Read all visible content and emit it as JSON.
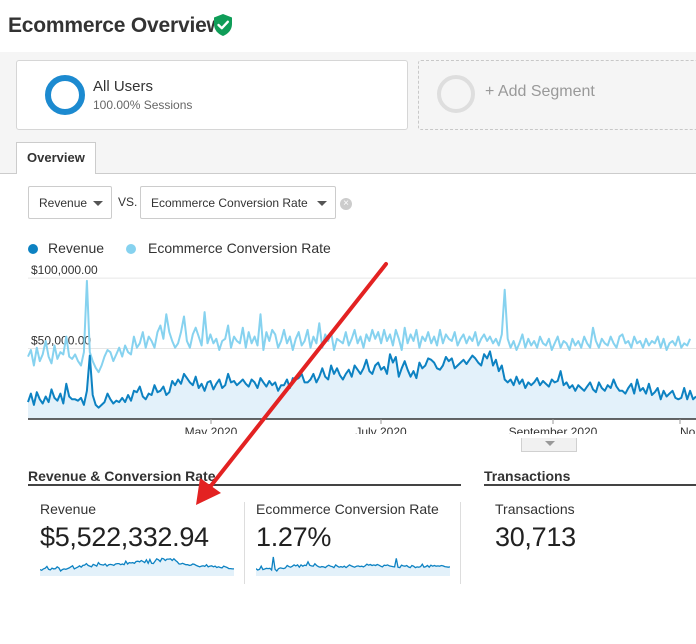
{
  "header": {
    "title": "Ecommerce Overview",
    "verified_icon": "shield-check-icon",
    "verified_color": "#0f9d58"
  },
  "segments": {
    "active": {
      "name": "All Users",
      "subtitle": "100.00% Sessions",
      "color": "#1c8ad0"
    },
    "add_label": "+ Add Segment"
  },
  "tabs": [
    {
      "label": "Overview",
      "selected": true
    }
  ],
  "controls": {
    "metric_primary": "Revenue",
    "vs_label": "VS.",
    "metric_secondary": "Ecommerce Conversion Rate",
    "clear_icon": "clear-x-icon"
  },
  "chart_data": {
    "type": "line",
    "x_tick_labels": [
      "May 2020",
      "July 2020",
      "September 2020",
      "No"
    ],
    "y_tick_labels": [
      "$100,000.00",
      "$50,000.00"
    ],
    "yaxis": {
      "ticks": [
        100000,
        50000
      ],
      "range": [
        0,
        110000
      ]
    },
    "grid": "horizontal",
    "legend_position": "top-left",
    "series": [
      {
        "name": "Revenue",
        "color": "#0d82c2",
        "fill": "#e3f1fa",
        "values": [
          12000,
          18000,
          10000,
          19000,
          14000,
          11000,
          16000,
          12000,
          21000,
          15000,
          13000,
          18000,
          11000,
          25000,
          16000,
          14000,
          14000,
          13000,
          15000,
          10000,
          20000,
          45000,
          17000,
          10000,
          8000,
          10000,
          12000,
          18000,
          14000,
          11000,
          13000,
          12000,
          15000,
          12000,
          17000,
          13000,
          20000,
          19000,
          23000,
          16000,
          14000,
          18000,
          17000,
          24000,
          19000,
          20000,
          23000,
          17000,
          19000,
          27000,
          24000,
          28000,
          25000,
          32000,
          29000,
          26000,
          24000,
          30000,
          22000,
          25000,
          20000,
          26000,
          27000,
          21000,
          25000,
          28000,
          22000,
          24000,
          32000,
          26000,
          27000,
          24000,
          26000,
          28000,
          25000,
          23000,
          28000,
          26000,
          22000,
          29000,
          26000,
          23000,
          27000,
          24000,
          26000,
          20000,
          24000,
          24000,
          28000,
          22000,
          29000,
          28000,
          29000,
          32000,
          26000,
          26000,
          28000,
          32000,
          26000,
          30000,
          36000,
          30000,
          28000,
          38000,
          32000,
          36000,
          31000,
          28000,
          32000,
          35000,
          30000,
          38000,
          35000,
          32000,
          36000,
          42000,
          34000,
          32000,
          38000,
          40000,
          35000,
          37000,
          32000,
          46000,
          40000,
          44000,
          30000,
          36000,
          41000,
          35000,
          30000,
          34000,
          29000,
          40000,
          36000,
          38000,
          43000,
          42000,
          40000,
          36000,
          35000,
          38000,
          44000,
          41000,
          43000,
          36000,
          38000,
          40000,
          42000,
          39000,
          42000,
          45000,
          43000,
          40000,
          38000,
          46000,
          43000,
          48000,
          38000,
          42000,
          34000,
          38000,
          28000,
          26000,
          28000,
          24000,
          30000,
          25000,
          28000,
          22000,
          26000,
          24000,
          26000,
          29000,
          24000,
          27000,
          25000,
          23000,
          28000,
          26000,
          27000,
          34000,
          24000,
          26000,
          22000,
          24000,
          20000,
          24000,
          22000,
          20000,
          23000,
          26000,
          21000,
          19000,
          26000,
          22000,
          20000,
          24000,
          22000,
          28000,
          23000,
          20000,
          20000,
          18000,
          22000,
          25000,
          18000,
          28000,
          20000,
          22000,
          18000,
          25000,
          17000,
          19000,
          22000,
          14000,
          20000,
          16000,
          18000,
          20000,
          15000,
          14000,
          15000,
          22000,
          14000,
          20000,
          14000,
          16000
        ]
      },
      {
        "name": "Ecommerce Conversion Rate",
        "color": "#86d2ef",
        "values": [
          1.4,
          1.55,
          1.2,
          1.6,
          1.3,
          1.45,
          1.75,
          1.4,
          1.25,
          1.65,
          1.35,
          1.5,
          1.45,
          1.85,
          1.4,
          1.35,
          1.45,
          1.3,
          1.2,
          1.5,
          3.1,
          1.5,
          1.3,
          1.15,
          1.05,
          1.2,
          1.4,
          1.55,
          1.5,
          1.3,
          1.45,
          1.6,
          1.4,
          1.65,
          1.5,
          1.45,
          1.85,
          1.6,
          1.7,
          1.95,
          1.6,
          1.85,
          1.75,
          1.6,
          1.95,
          2.1,
          1.8,
          2.35,
          1.95,
          1.75,
          1.6,
          1.7,
          1.95,
          2.3,
          1.75,
          1.6,
          1.9,
          2.05,
          1.85,
          1.65,
          2.4,
          1.7,
          1.9,
          1.7,
          1.8,
          1.55,
          1.75,
          1.8,
          2.1,
          1.6,
          1.85,
          1.75,
          1.7,
          2.05,
          1.6,
          1.95,
          1.7,
          1.85,
          1.65,
          2.35,
          1.55,
          1.95,
          1.75,
          2.0,
          1.9,
          1.6,
          1.75,
          2.0,
          1.7,
          1.85,
          1.55,
          1.8,
          1.95,
          1.65,
          1.75,
          2.0,
          1.6,
          1.85,
          1.7,
          2.15,
          1.6,
          1.9,
          1.75,
          1.95,
          1.55,
          1.8,
          1.75,
          1.7,
          1.95,
          1.65,
          1.8,
          2.0,
          1.7,
          1.85,
          1.6,
          1.9,
          1.75,
          2.0,
          1.8,
          1.95,
          1.7,
          2.0,
          1.75,
          1.9,
          1.65,
          2.0,
          1.8,
          1.55,
          2.05,
          1.7,
          1.9,
          1.75,
          2.0,
          1.6,
          1.85,
          1.75,
          1.95,
          1.7,
          1.85,
          1.65,
          2.0,
          1.7,
          1.9,
          1.8,
          1.75,
          1.95,
          1.65,
          1.8,
          1.9,
          1.7,
          1.85,
          1.75,
          1.95,
          1.65,
          1.8,
          1.9,
          1.75,
          1.85,
          1.7,
          1.8,
          1.65,
          1.9,
          2.9,
          1.8,
          1.6,
          1.75,
          1.55,
          1.7,
          1.9,
          1.6,
          1.8,
          1.65,
          1.75,
          1.6,
          1.85,
          1.7,
          1.65,
          1.8,
          1.55,
          1.7,
          1.85,
          1.6,
          1.75,
          1.7,
          1.55,
          1.8,
          1.65,
          1.75,
          1.6,
          1.85,
          1.7,
          1.6,
          2.05,
          1.75,
          1.6,
          1.8,
          1.7,
          1.65,
          1.85,
          1.7,
          1.6,
          1.85,
          1.9,
          1.7,
          1.75,
          1.6,
          1.85,
          1.7,
          1.75,
          1.6,
          1.8,
          1.65,
          1.75,
          1.7,
          1.85,
          1.6,
          1.8,
          1.55,
          1.7,
          1.75,
          1.65,
          1.85,
          1.6,
          1.7,
          1.65,
          1.8
        ]
      }
    ]
  },
  "sections": [
    {
      "title": "Revenue & Conversion Rate"
    },
    {
      "title": "Transactions"
    }
  ],
  "metrics": [
    {
      "label": "Revenue",
      "value": "$5,522,332.94"
    },
    {
      "label": "Ecommerce Conversion Rate",
      "value": "1.27%"
    },
    {
      "label": "Transactions",
      "value": "30,713"
    }
  ],
  "annotation": {
    "type": "arrow",
    "color": "#e32222"
  }
}
